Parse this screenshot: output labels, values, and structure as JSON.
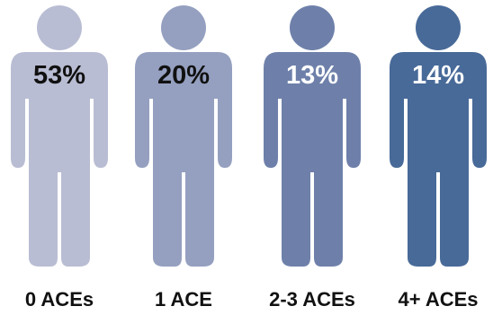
{
  "chart_data": {
    "type": "pictograph",
    "categories": [
      "0 ACEs",
      "1 ACE",
      "2-3 ACEs",
      "4+ ACEs"
    ],
    "values": [
      53,
      20,
      13,
      14
    ],
    "value_labels": [
      "53%",
      "20%",
      "13%",
      "14%"
    ],
    "colors": [
      "#b9bdd3",
      "#95a0c0",
      "#6e80aa",
      "#486a98"
    ],
    "label_colors": [
      "#111111",
      "#111111",
      "#ffffff",
      "#ffffff"
    ],
    "icon": "person-icon"
  }
}
